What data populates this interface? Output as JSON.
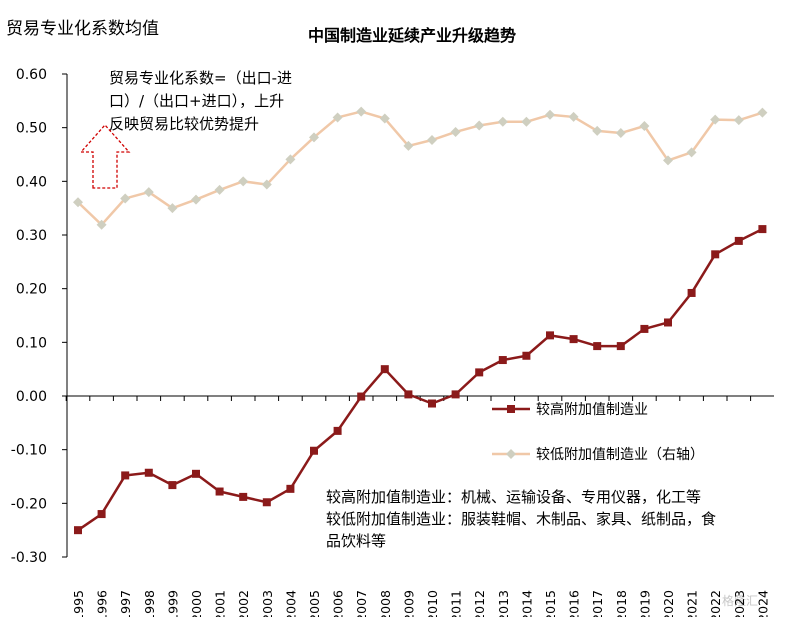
{
  "chart_data": {
    "type": "line",
    "title": "中国制造业延续产业升级趋势",
    "ylabel": "贸易专业化系数均值",
    "x": [
      "1995",
      "1996",
      "1997",
      "1998",
      "1999",
      "2000",
      "2001",
      "2002",
      "2003",
      "2004",
      "2005",
      "2006",
      "2007",
      "2008",
      "2009",
      "2010",
      "2011",
      "2012",
      "2013",
      "2014",
      "2015",
      "2016",
      "2017",
      "2018",
      "2019",
      "2020",
      "2021",
      "2022",
      "2023",
      "2024"
    ],
    "ylim": [
      -0.3,
      0.6
    ],
    "yticks": [
      "0.60",
      "0.50",
      "0.40",
      "0.30",
      "0.20",
      "0.10",
      "0.00",
      "-0.10",
      "-0.20",
      "-0.30"
    ],
    "series": [
      {
        "name": "较高附加值制造业",
        "color": "#8b1a1a",
        "marker": "square",
        "values": [
          -0.25,
          -0.22,
          -0.148,
          -0.143,
          -0.166,
          -0.145,
          -0.178,
          -0.188,
          -0.198,
          -0.173,
          -0.102,
          -0.065,
          -0.001,
          0.05,
          0.003,
          -0.014,
          0.003,
          0.044,
          0.067,
          0.075,
          0.113,
          0.106,
          0.093,
          0.093,
          0.125,
          0.137,
          0.192,
          0.264,
          0.289,
          0.311
        ]
      },
      {
        "name": "较低附加值制造业（右轴）",
        "color": "#f0c8a8",
        "marker": "diamond",
        "values": [
          0.361,
          0.319,
          0.368,
          0.38,
          0.35,
          0.366,
          0.384,
          0.4,
          0.394,
          0.441,
          0.482,
          0.519,
          0.53,
          0.517,
          0.466,
          0.477,
          0.492,
          0.504,
          0.511,
          0.511,
          0.524,
          0.52,
          0.494,
          0.49,
          0.503,
          0.439,
          0.454,
          0.515,
          0.514,
          0.528
        ]
      }
    ],
    "annotations": {
      "formula_lines": [
        "贸易专业化系数=（出口-进",
        "口）/（出口+进口），上升",
        "反映贸易比较优势提升"
      ],
      "definition_lines": [
        "较高附加值制造业：机械、运输设备、专用仪器，化工等",
        "较低附加值制造业：服装鞋帽、木制品、家具、纸制品，食",
        "品饮料等"
      ]
    },
    "arrow": {
      "color": "#d00000",
      "style": "dashed",
      "direction": "up"
    }
  },
  "watermark": "格隆汇"
}
